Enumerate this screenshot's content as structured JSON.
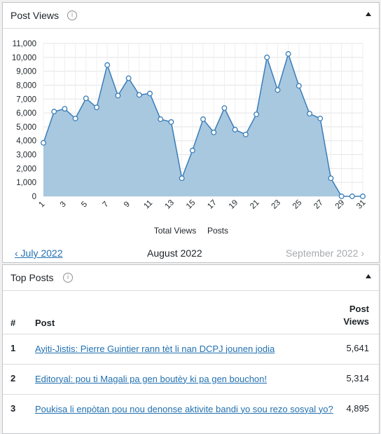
{
  "post_views": {
    "title": "Post Views",
    "info_icon": "info-icon",
    "toggle_icon": "triangle-up-icon"
  },
  "chart_data": {
    "type": "area",
    "x": [
      1,
      2,
      3,
      4,
      5,
      6,
      7,
      8,
      9,
      10,
      11,
      12,
      13,
      14,
      15,
      16,
      17,
      18,
      19,
      20,
      21,
      22,
      23,
      24,
      25,
      26,
      27,
      28,
      29,
      30,
      31
    ],
    "xticks": [
      "1",
      "3",
      "5",
      "7",
      "9",
      "11",
      "13",
      "15",
      "17",
      "19",
      "21",
      "23",
      "25",
      "27",
      "29",
      "31"
    ],
    "yticks": [
      "0",
      "1,000",
      "2,000",
      "3,000",
      "4,000",
      "5,000",
      "6,000",
      "7,000",
      "8,000",
      "9,000",
      "10,000",
      "11,000"
    ],
    "ylim": [
      0,
      11000
    ],
    "series": [
      {
        "name": "Total Views",
        "values": [
          3850,
          6100,
          6300,
          5600,
          7050,
          6400,
          9450,
          7250,
          8500,
          7300,
          7400,
          5550,
          5350,
          1300,
          3300,
          5550,
          4600,
          6350,
          4800,
          4450,
          5900,
          10000,
          7650,
          10250,
          7950,
          5950,
          5600,
          1300,
          0,
          0,
          0
        ],
        "color": "#5b9bd5",
        "fill": "#a8c8e0"
      }
    ],
    "legend": [
      "Total Views",
      "Posts"
    ],
    "legend_position": "bottom",
    "grid": true
  },
  "nav": {
    "prev": "‹ July 2022",
    "current": "August 2022",
    "next": "September 2022 ›"
  },
  "top_posts": {
    "title": "Top Posts",
    "columns": {
      "num": "#",
      "post": "Post",
      "views_line1": "Post",
      "views_line2": "Views"
    },
    "rows": [
      {
        "num": "1",
        "title": "Ayiti-Jistis: Pierre Guintier rann tèt li nan DCPJ jounen jodia",
        "views": "5,641"
      },
      {
        "num": "2",
        "title": "Editoryal: pou ti Magali pa gen boutèy ki pa gen bouchon!",
        "views": "5,314"
      },
      {
        "num": "3",
        "title": "Poukisa li enpòtan pou nou denonse aktivite bandi yo sou rezo sosyal yo?",
        "views": "4,895"
      }
    ]
  }
}
